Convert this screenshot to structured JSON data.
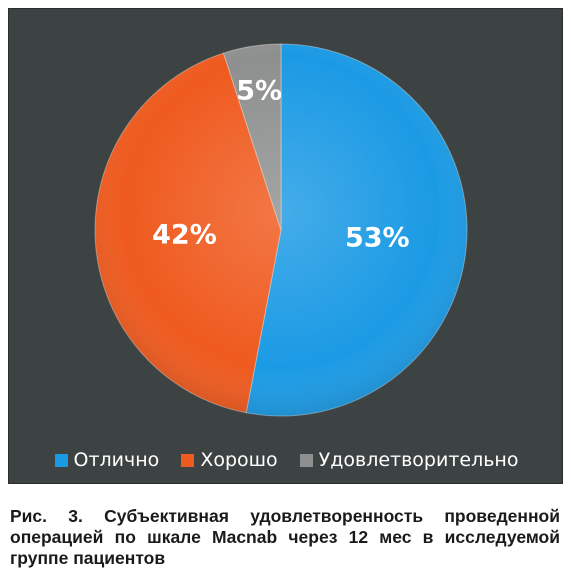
{
  "chart_data": {
    "type": "pie",
    "categories": [
      "Отлично",
      "Хорошо",
      "Удовлетворительно"
    ],
    "values": [
      53,
      42,
      5
    ],
    "data_labels": [
      "53%",
      "42%",
      "5%"
    ],
    "colors": [
      "#1b9ae4",
      "#ef5a1e",
      "#8e9090"
    ],
    "label_colors": [
      "#ffffff",
      "#ffffff",
      "#ffffff"
    ],
    "start": "top",
    "direction": "clockwise",
    "legend_position": "bottom",
    "background": "#3d4343"
  },
  "caption": "Рис. 3. Субъективная удовлетворенность проведенной операцией по шкале Macnab через 12 мес в исследуемой группе пациентов"
}
